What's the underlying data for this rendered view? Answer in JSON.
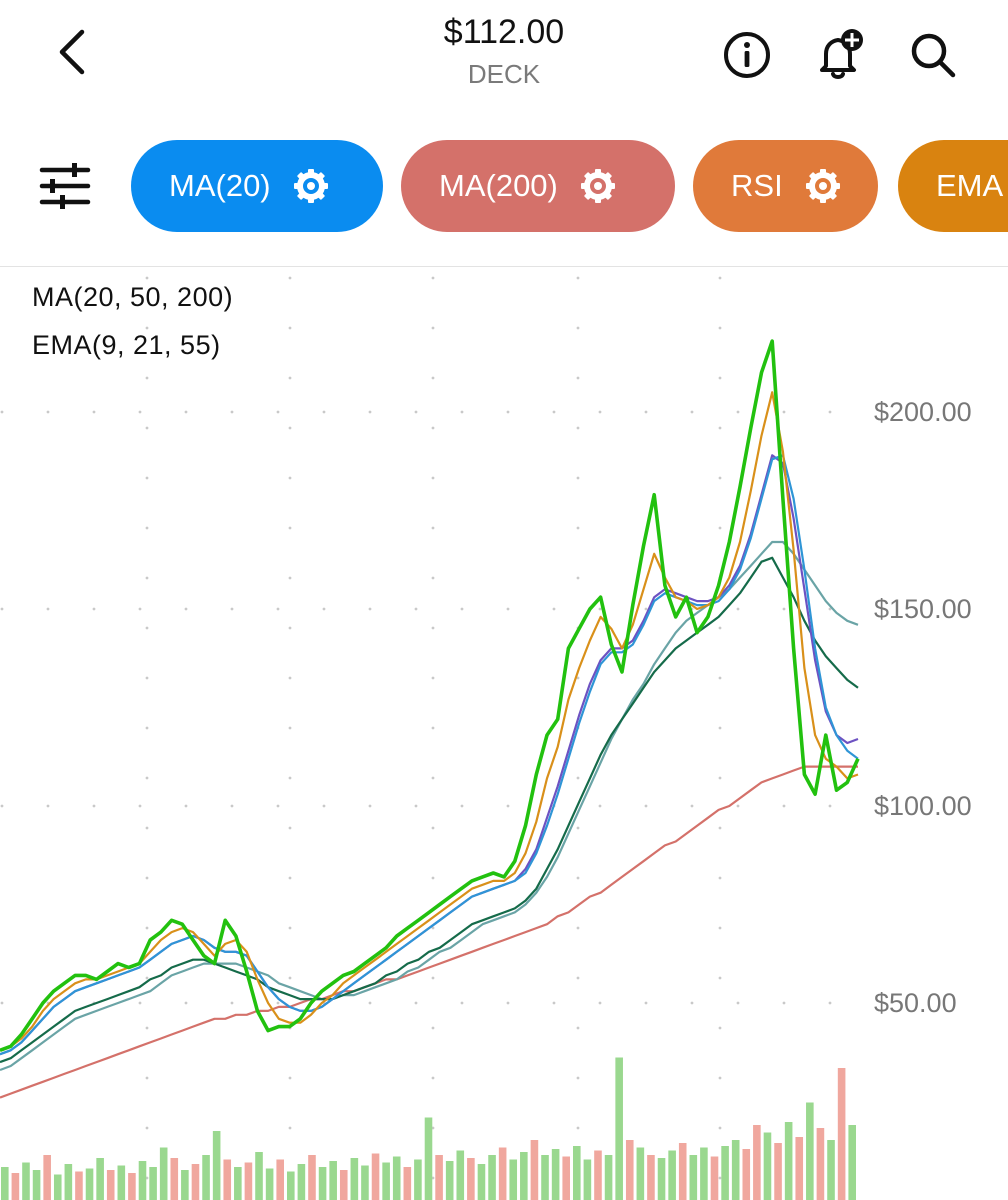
{
  "header": {
    "price": "$112.00",
    "ticker": "DECK",
    "icons": [
      "back-arrow-icon",
      "info-icon",
      "bell-plus-icon",
      "search-icon"
    ]
  },
  "chips": [
    {
      "label": "MA(20)",
      "color": "#0a8cf0"
    },
    {
      "label": "MA(200)",
      "color": "#d4716a"
    },
    {
      "label": "RSI",
      "color": "#e07a3a"
    },
    {
      "label": "EMA",
      "color": "#d98310"
    }
  ],
  "legend": {
    "ma_text": "MA(20, 50, 200)",
    "ema_text": "EMA(9, 21, 55)"
  },
  "chart_data": {
    "type": "line",
    "y_ticks": [
      "$200.00",
      "$150.00",
      "$100.00",
      "$50.00"
    ],
    "ylim": [
      18,
      236
    ],
    "grid": "dotted",
    "series": [
      {
        "color": "#22c10f",
        "values": [
          38,
          39,
          42,
          46,
          50,
          53,
          55,
          57,
          57,
          56,
          58,
          60,
          59,
          60,
          66,
          68,
          71,
          70,
          66,
          62,
          60,
          71,
          67,
          58,
          48,
          43,
          44,
          44,
          46,
          50,
          53,
          55,
          57,
          58,
          60,
          62,
          64,
          67,
          69,
          71,
          73,
          75,
          77,
          79,
          81,
          82,
          83,
          82,
          86,
          95,
          108,
          118,
          122,
          140,
          145,
          150,
          153,
          141,
          134,
          151,
          166,
          179,
          156,
          148,
          153,
          144,
          148,
          156,
          167,
          181,
          196,
          210,
          218,
          178,
          140,
          108,
          103,
          118,
          104,
          106,
          112
        ]
      },
      {
        "color": "#d9901a",
        "values": [
          38,
          39,
          41,
          44,
          48,
          51,
          53,
          55,
          56,
          56,
          57,
          58,
          59,
          60,
          63,
          66,
          68,
          69,
          68,
          65,
          62,
          65,
          66,
          63,
          56,
          50,
          46,
          45,
          45,
          47,
          50,
          52,
          55,
          57,
          59,
          61,
          63,
          65,
          67,
          69,
          71,
          73,
          75,
          77,
          79,
          80,
          81,
          81,
          83,
          88,
          96,
          107,
          115,
          127,
          135,
          142,
          148,
          145,
          140,
          146,
          155,
          164,
          158,
          153,
          152,
          150,
          151,
          153,
          158,
          167,
          180,
          194,
          205,
          190,
          165,
          135,
          118,
          112,
          110,
          107,
          108
        ]
      },
      {
        "color": "#2f95d6",
        "values": [
          37,
          38,
          40,
          43,
          46,
          49,
          51,
          53,
          54,
          55,
          56,
          57,
          58,
          59,
          61,
          63,
          65,
          66,
          67,
          66,
          64,
          63,
          63,
          62,
          58,
          54,
          51,
          49,
          48,
          48,
          49,
          51,
          53,
          55,
          57,
          59,
          61,
          63,
          65,
          67,
          69,
          71,
          73,
          75,
          77,
          78,
          79,
          80,
          81,
          83,
          88,
          95,
          103,
          112,
          121,
          129,
          136,
          139,
          139,
          141,
          146,
          152,
          154,
          153,
          152,
          151,
          151,
          152,
          155,
          160,
          168,
          178,
          188,
          189,
          178,
          160,
          140,
          125,
          118,
          114,
          112
        ]
      },
      {
        "color": "#6d52c2",
        "values": [
          37,
          38,
          40,
          43,
          46,
          49,
          51,
          53,
          54,
          55,
          56,
          57,
          58,
          59,
          61,
          63,
          65,
          66,
          67,
          66,
          64,
          63,
          63,
          62,
          58,
          54,
          51,
          49,
          48,
          48,
          49,
          51,
          53,
          55,
          57,
          59,
          61,
          63,
          65,
          67,
          69,
          71,
          73,
          75,
          77,
          78,
          79,
          80,
          81,
          84,
          89,
          97,
          105,
          114,
          123,
          131,
          137,
          140,
          140,
          142,
          147,
          153,
          155,
          154,
          153,
          152,
          152,
          153,
          156,
          161,
          169,
          179,
          189,
          187,
          173,
          155,
          137,
          124,
          118,
          116,
          117
        ]
      },
      {
        "color": "#156b4a",
        "values": [
          35,
          36,
          38,
          40,
          42,
          44,
          46,
          48,
          49,
          50,
          51,
          52,
          53,
          54,
          56,
          57,
          59,
          60,
          61,
          61,
          60,
          59,
          58,
          57,
          56,
          54,
          53,
          52,
          51,
          51,
          51,
          51,
          52,
          53,
          54,
          55,
          57,
          58,
          60,
          61,
          63,
          64,
          66,
          68,
          70,
          71,
          72,
          73,
          74,
          76,
          79,
          84,
          89,
          95,
          101,
          107,
          113,
          118,
          122,
          126,
          130,
          134,
          137,
          140,
          142,
          144,
          146,
          148,
          151,
          154,
          158,
          162,
          163,
          158,
          153,
          147,
          142,
          138,
          135,
          132,
          130
        ]
      },
      {
        "color": "#6aa4a6",
        "values": [
          33,
          34,
          36,
          38,
          40,
          42,
          44,
          46,
          47,
          48,
          49,
          50,
          51,
          52,
          53,
          55,
          57,
          58,
          59,
          60,
          60,
          60,
          60,
          59,
          58,
          57,
          55,
          54,
          53,
          52,
          51,
          51,
          52,
          52,
          53,
          54,
          55,
          56,
          58,
          59,
          61,
          63,
          64,
          66,
          68,
          70,
          71,
          72,
          73,
          75,
          78,
          82,
          87,
          93,
          99,
          105,
          111,
          117,
          122,
          127,
          131,
          136,
          140,
          144,
          147,
          149,
          151,
          153,
          155,
          158,
          161,
          164,
          167,
          167,
          164,
          160,
          156,
          152,
          149,
          147,
          146
        ]
      },
      {
        "color": "#d4716a",
        "values": [
          26,
          27,
          28,
          29,
          30,
          31,
          32,
          33,
          34,
          35,
          36,
          37,
          38,
          39,
          40,
          41,
          42,
          43,
          44,
          45,
          46,
          46,
          47,
          47,
          48,
          48,
          49,
          49,
          50,
          51,
          51,
          52,
          53,
          53,
          54,
          55,
          56,
          56,
          57,
          58,
          59,
          60,
          61,
          62,
          63,
          64,
          65,
          66,
          67,
          68,
          69,
          70,
          72,
          73,
          75,
          77,
          78,
          80,
          82,
          84,
          86,
          88,
          90,
          91,
          93,
          95,
          97,
          99,
          100,
          102,
          104,
          106,
          107,
          108,
          109,
          110,
          110,
          110,
          110,
          110,
          110
        ]
      }
    ],
    "volume": [
      {
        "value": 0.22,
        "dir": "up"
      },
      {
        "value": 0.18,
        "dir": "down"
      },
      {
        "value": 0.25,
        "dir": "up"
      },
      {
        "value": 0.2,
        "dir": "up"
      },
      {
        "value": 0.3,
        "dir": "down"
      },
      {
        "value": 0.17,
        "dir": "up"
      },
      {
        "value": 0.24,
        "dir": "up"
      },
      {
        "value": 0.19,
        "dir": "down"
      },
      {
        "value": 0.21,
        "dir": "up"
      },
      {
        "value": 0.28,
        "dir": "up"
      },
      {
        "value": 0.2,
        "dir": "down"
      },
      {
        "value": 0.23,
        "dir": "up"
      },
      {
        "value": 0.18,
        "dir": "down"
      },
      {
        "value": 0.26,
        "dir": "up"
      },
      {
        "value": 0.22,
        "dir": "up"
      },
      {
        "value": 0.35,
        "dir": "up"
      },
      {
        "value": 0.28,
        "dir": "down"
      },
      {
        "value": 0.2,
        "dir": "up"
      },
      {
        "value": 0.24,
        "dir": "down"
      },
      {
        "value": 0.3,
        "dir": "up"
      },
      {
        "value": 0.46,
        "dir": "up"
      },
      {
        "value": 0.27,
        "dir": "down"
      },
      {
        "value": 0.22,
        "dir": "up"
      },
      {
        "value": 0.25,
        "dir": "down"
      },
      {
        "value": 0.32,
        "dir": "up"
      },
      {
        "value": 0.21,
        "dir": "up"
      },
      {
        "value": 0.27,
        "dir": "down"
      },
      {
        "value": 0.19,
        "dir": "up"
      },
      {
        "value": 0.24,
        "dir": "up"
      },
      {
        "value": 0.3,
        "dir": "down"
      },
      {
        "value": 0.22,
        "dir": "up"
      },
      {
        "value": 0.26,
        "dir": "up"
      },
      {
        "value": 0.2,
        "dir": "down"
      },
      {
        "value": 0.28,
        "dir": "up"
      },
      {
        "value": 0.23,
        "dir": "up"
      },
      {
        "value": 0.31,
        "dir": "down"
      },
      {
        "value": 0.25,
        "dir": "up"
      },
      {
        "value": 0.29,
        "dir": "up"
      },
      {
        "value": 0.22,
        "dir": "down"
      },
      {
        "value": 0.27,
        "dir": "up"
      },
      {
        "value": 0.55,
        "dir": "up"
      },
      {
        "value": 0.3,
        "dir": "down"
      },
      {
        "value": 0.26,
        "dir": "up"
      },
      {
        "value": 0.33,
        "dir": "up"
      },
      {
        "value": 0.28,
        "dir": "down"
      },
      {
        "value": 0.24,
        "dir": "up"
      },
      {
        "value": 0.3,
        "dir": "up"
      },
      {
        "value": 0.35,
        "dir": "down"
      },
      {
        "value": 0.27,
        "dir": "up"
      },
      {
        "value": 0.32,
        "dir": "up"
      },
      {
        "value": 0.4,
        "dir": "down"
      },
      {
        "value": 0.3,
        "dir": "up"
      },
      {
        "value": 0.34,
        "dir": "up"
      },
      {
        "value": 0.29,
        "dir": "down"
      },
      {
        "value": 0.36,
        "dir": "up"
      },
      {
        "value": 0.27,
        "dir": "up"
      },
      {
        "value": 0.33,
        "dir": "down"
      },
      {
        "value": 0.3,
        "dir": "up"
      },
      {
        "value": 0.95,
        "dir": "up"
      },
      {
        "value": 0.4,
        "dir": "down"
      },
      {
        "value": 0.35,
        "dir": "up"
      },
      {
        "value": 0.3,
        "dir": "down"
      },
      {
        "value": 0.28,
        "dir": "up"
      },
      {
        "value": 0.33,
        "dir": "up"
      },
      {
        "value": 0.38,
        "dir": "down"
      },
      {
        "value": 0.3,
        "dir": "up"
      },
      {
        "value": 0.35,
        "dir": "up"
      },
      {
        "value": 0.29,
        "dir": "down"
      },
      {
        "value": 0.36,
        "dir": "up"
      },
      {
        "value": 0.4,
        "dir": "up"
      },
      {
        "value": 0.34,
        "dir": "down"
      },
      {
        "value": 0.5,
        "dir": "down"
      },
      {
        "value": 0.45,
        "dir": "up"
      },
      {
        "value": 0.38,
        "dir": "down"
      },
      {
        "value": 0.52,
        "dir": "up"
      },
      {
        "value": 0.42,
        "dir": "down"
      },
      {
        "value": 0.65,
        "dir": "up"
      },
      {
        "value": 0.48,
        "dir": "down"
      },
      {
        "value": 0.4,
        "dir": "up"
      },
      {
        "value": 0.88,
        "dir": "down"
      },
      {
        "value": 0.5,
        "dir": "up"
      }
    ],
    "volume_colors": {
      "up": "#9ad88f",
      "down": "#f0a79e"
    }
  }
}
